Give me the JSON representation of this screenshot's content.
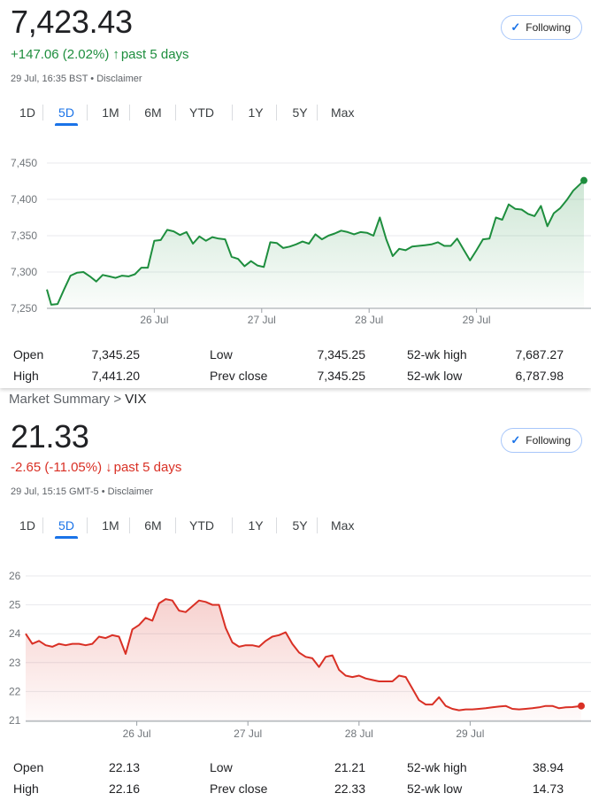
{
  "ftse": {
    "price": "7,423.43",
    "change": "+147.06 (2.02%)",
    "change_arrow": "↑",
    "period": "past 5 days",
    "timestamp": "29 Jul, 16:35 BST",
    "disclaimer": "Disclaimer",
    "meta_sep": " • ",
    "follow_label": "Following",
    "accent": "#1e8e3e",
    "tabs": [
      "1D",
      "5D",
      "1M",
      "6M",
      "YTD",
      "1Y",
      "5Y",
      "Max"
    ],
    "active_tab": "5D",
    "stats": {
      "open_label": "Open",
      "open": "7,345.25",
      "high_label": "High",
      "high": "7,441.20",
      "low_label": "Low",
      "low": "7,345.25",
      "prev_label": "Prev close",
      "prev": "7,345.25",
      "wkhigh_label": "52-wk high",
      "wkhigh": "7,687.27",
      "wklow_label": "52-wk low",
      "wklow": "6,787.98"
    }
  },
  "vix": {
    "crumb_parent": "Market Summary",
    "crumb_sep": " > ",
    "crumb_current": "VIX",
    "price": "21.33",
    "change": "-2.65 (-11.05%)",
    "change_arrow": "↓",
    "period": "past 5 days",
    "timestamp": "29 Jul, 15:15 GMT-5",
    "disclaimer": "Disclaimer",
    "meta_sep": " • ",
    "follow_label": "Following",
    "accent": "#d93025",
    "tabs": [
      "1D",
      "5D",
      "1M",
      "6M",
      "YTD",
      "1Y",
      "5Y",
      "Max"
    ],
    "active_tab": "5D",
    "stats": {
      "open_label": "Open",
      "open": "22.13",
      "high_label": "High",
      "high": "22.16",
      "low_label": "Low",
      "low": "21.21",
      "prev_label": "Prev close",
      "prev": "22.33",
      "wkhigh_label": "52-wk high",
      "wkhigh": "38.94",
      "wklow_label": "52-wk low",
      "wklow": "14.73"
    }
  },
  "chart_data": [
    {
      "type": "line",
      "color": "#1e8e3e",
      "ylim": [
        7250,
        7450
      ],
      "yticks": [
        7250,
        7300,
        7350,
        7400,
        7450
      ],
      "ytick_labels": [
        "7,250",
        "7,300",
        "7,350",
        "7,400",
        "7,450"
      ],
      "x_categories": [
        "26 Jul",
        "27 Jul",
        "28 Jul",
        "29 Jul"
      ],
      "x_tick_positions": [
        1,
        2,
        3,
        4
      ],
      "xlim": [
        0.0,
        5.0
      ],
      "grid": true,
      "series": [
        {
          "x": [
            0.0,
            0.04,
            0.1,
            0.16,
            0.22,
            0.28,
            0.34,
            0.4,
            0.46,
            0.52,
            0.58,
            0.64,
            0.7,
            0.76,
            0.82,
            0.88,
            0.94,
            1.0,
            1.06,
            1.12,
            1.18,
            1.24,
            1.3,
            1.36,
            1.42,
            1.48,
            1.54,
            1.6,
            1.66,
            1.72,
            1.78,
            1.84,
            1.9,
            1.96,
            2.02,
            2.08,
            2.14,
            2.2,
            2.26,
            2.32,
            2.38,
            2.44,
            2.5,
            2.56,
            2.62,
            2.68,
            2.74,
            2.8,
            2.86,
            2.92,
            2.98,
            3.04,
            3.1,
            3.16,
            3.22,
            3.28,
            3.34,
            3.4,
            3.46,
            3.52,
            3.58,
            3.64,
            3.7,
            3.76,
            3.82,
            3.88,
            3.94,
            4.0,
            4.06,
            4.12,
            4.18,
            4.24,
            4.3,
            4.36,
            4.42,
            4.48,
            4.54,
            4.6,
            4.66,
            4.72,
            4.78,
            4.84,
            4.9,
            5.0
          ],
          "y": [
            7276,
            7255,
            7256,
            7276,
            7295,
            7299,
            7300,
            7294,
            7287,
            7296,
            7294,
            7292,
            7295,
            7294,
            7297,
            7306,
            7306,
            7343,
            7344,
            7358,
            7356,
            7351,
            7355,
            7339,
            7349,
            7343,
            7348,
            7346,
            7345,
            7321,
            7318,
            7308,
            7315,
            7309,
            7307,
            7341,
            7340,
            7333,
            7335,
            7338,
            7342,
            7339,
            7352,
            7345,
            7350,
            7353,
            7357,
            7355,
            7352,
            7355,
            7354,
            7350,
            7375,
            7345,
            7322,
            7332,
            7330,
            7335,
            7336,
            7337,
            7338,
            7341,
            7336,
            7336,
            7346,
            7331,
            7316,
            7330,
            7345,
            7346,
            7375,
            7372,
            7393,
            7387,
            7386,
            7380,
            7377,
            7391,
            7363,
            7381,
            7388,
            7399,
            7412,
            7426
          ]
        }
      ]
    },
    {
      "type": "line",
      "color": "#d93025",
      "ylim": [
        21,
        26
      ],
      "yticks": [
        21,
        22,
        23,
        24,
        25,
        26
      ],
      "ytick_labels": [
        "21",
        "22",
        "23",
        "24",
        "25",
        "26"
      ],
      "x_categories": [
        "26 Jul",
        "27 Jul",
        "28 Jul",
        "29 Jul"
      ],
      "x_tick_positions": [
        1,
        2,
        3,
        4
      ],
      "xlim": [
        0.0,
        5.0
      ],
      "grid": true,
      "series": [
        {
          "x": [
            0.0,
            0.06,
            0.12,
            0.18,
            0.24,
            0.3,
            0.36,
            0.42,
            0.48,
            0.54,
            0.6,
            0.66,
            0.72,
            0.78,
            0.84,
            0.9,
            0.96,
            1.02,
            1.08,
            1.14,
            1.2,
            1.26,
            1.32,
            1.38,
            1.44,
            1.5,
            1.56,
            1.62,
            1.68,
            1.74,
            1.8,
            1.86,
            1.92,
            1.98,
            2.04,
            2.1,
            2.16,
            2.22,
            2.28,
            2.34,
            2.4,
            2.46,
            2.52,
            2.58,
            2.64,
            2.7,
            2.76,
            2.82,
            2.88,
            2.94,
            3.0,
            3.06,
            3.12,
            3.18,
            3.24,
            3.3,
            3.36,
            3.42,
            3.48,
            3.54,
            3.6,
            3.66,
            3.72,
            3.78,
            3.84,
            3.9,
            3.96,
            4.02,
            4.08,
            4.14,
            4.2,
            4.26,
            4.32,
            4.38,
            4.44,
            4.5,
            4.56,
            4.62,
            4.68,
            4.74,
            4.8,
            4.86,
            4.92,
            5.0
          ],
          "y": [
            24.0,
            23.65,
            23.75,
            23.6,
            23.55,
            23.65,
            23.6,
            23.65,
            23.65,
            23.6,
            23.65,
            23.9,
            23.85,
            23.95,
            23.9,
            23.3,
            24.15,
            24.3,
            24.55,
            24.45,
            25.05,
            25.2,
            25.15,
            24.8,
            24.75,
            24.95,
            25.15,
            25.1,
            25.0,
            25.0,
            24.2,
            23.7,
            23.55,
            23.6,
            23.6,
            23.55,
            23.75,
            23.9,
            23.95,
            24.05,
            23.65,
            23.35,
            23.2,
            23.15,
            22.85,
            23.2,
            23.25,
            22.75,
            22.55,
            22.5,
            22.55,
            22.45,
            22.4,
            22.35,
            22.35,
            22.35,
            22.55,
            22.5,
            22.1,
            21.7,
            21.55,
            21.55,
            21.8,
            21.5,
            21.4,
            21.35,
            21.38,
            21.38,
            21.4,
            21.42,
            21.45,
            21.48,
            21.5,
            21.4,
            21.38,
            21.4,
            21.42,
            21.45,
            21.5,
            21.5,
            21.42,
            21.45,
            21.46,
            21.5
          ]
        }
      ]
    }
  ]
}
